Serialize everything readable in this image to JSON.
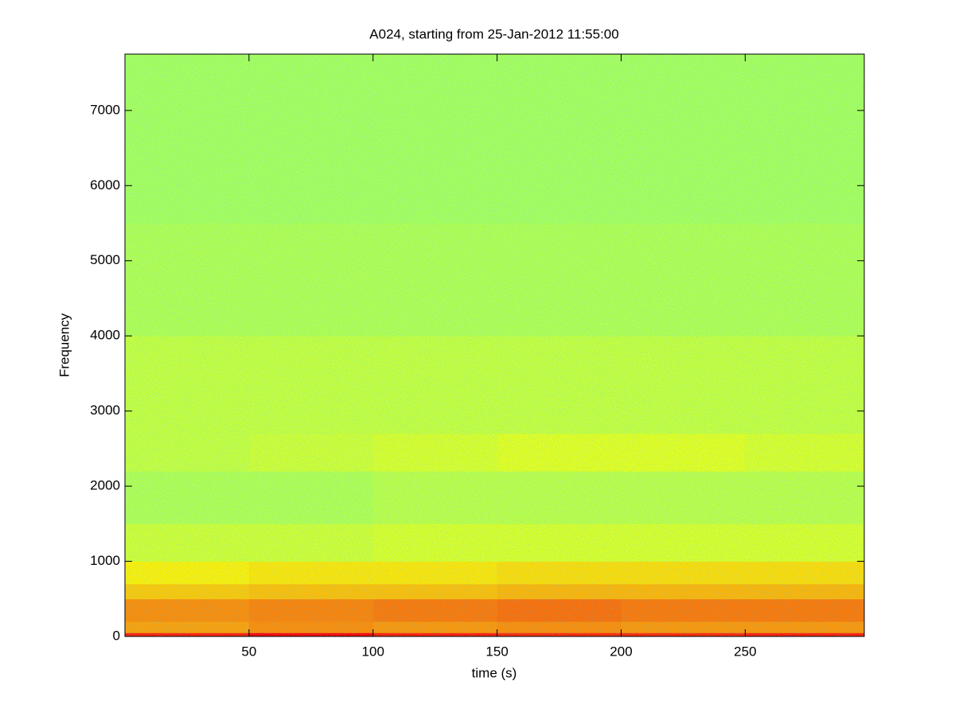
{
  "chart_data": {
    "type": "heatmap",
    "title": "A024, starting from 25-Jan-2012 11:55:00",
    "x_label": "time (s)",
    "y_label": "Frequency",
    "colormap": "jet",
    "x_bins": [
      0,
      50,
      100,
      150,
      200,
      250,
      298
    ],
    "y_bins": [
      0,
      50,
      200,
      500,
      700,
      1000,
      1500,
      2200,
      2700,
      4000,
      5500,
      7750
    ],
    "values": [
      [
        0.85,
        0.88,
        0.85,
        0.84,
        0.84,
        0.85
      ],
      [
        0.72,
        0.74,
        0.73,
        0.74,
        0.73,
        0.73
      ],
      [
        0.74,
        0.75,
        0.76,
        0.77,
        0.76,
        0.76
      ],
      [
        0.68,
        0.69,
        0.69,
        0.7,
        0.7,
        0.7
      ],
      [
        0.64,
        0.65,
        0.65,
        0.66,
        0.66,
        0.66
      ],
      [
        0.58,
        0.58,
        0.59,
        0.59,
        0.59,
        0.59
      ],
      [
        0.55,
        0.55,
        0.56,
        0.56,
        0.56,
        0.56
      ],
      [
        0.57,
        0.58,
        0.59,
        0.6,
        0.6,
        0.59
      ],
      [
        0.57,
        0.57,
        0.57,
        0.57,
        0.57,
        0.57
      ],
      [
        0.55,
        0.55,
        0.55,
        0.55,
        0.55,
        0.55
      ],
      [
        0.54,
        0.54,
        0.54,
        0.54,
        0.54,
        0.54
      ]
    ],
    "xlim": [
      0,
      298
    ],
    "ylim": [
      0,
      7750
    ],
    "xticks": [
      50,
      100,
      150,
      200,
      250
    ],
    "yticks": [
      0,
      1000,
      2000,
      3000,
      4000,
      5000,
      6000,
      7000
    ],
    "grid": false
  }
}
